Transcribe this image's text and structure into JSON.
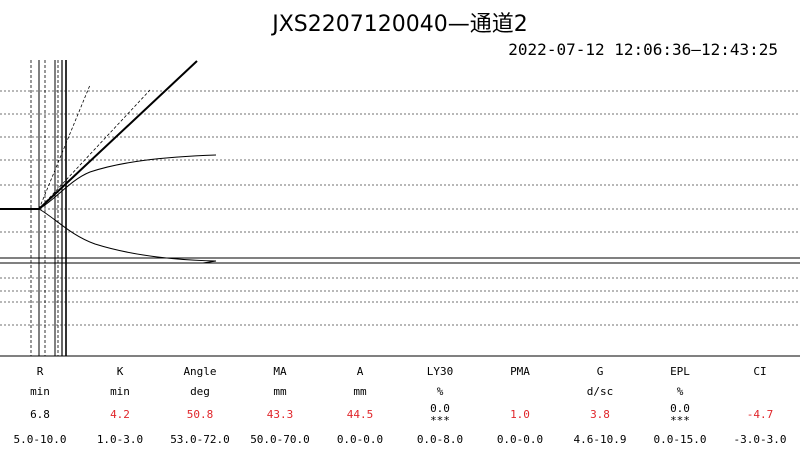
{
  "title": "JXS2207120040—通道2",
  "time_range": "2022-07-12 12:06:36—12:43:25",
  "chart_data": {
    "type": "line",
    "title": "JXS2207120040—通道2",
    "subtitle": "2022-07-12 12:06:36—12:43:25",
    "xlabel": "",
    "ylabel": "",
    "grid": true,
    "series": []
  },
  "params": [
    {
      "name": "R",
      "unit": "min",
      "value": "6.8",
      "flag": "",
      "range": "5.0-10.0",
      "color": "#000000"
    },
    {
      "name": "K",
      "unit": "min",
      "value": "4.2",
      "flag": "",
      "range": "1.0-3.0",
      "color": "#e0262b"
    },
    {
      "name": "Angle",
      "unit": "deg",
      "value": "50.8",
      "flag": "",
      "range": "53.0-72.0",
      "color": "#e0262b"
    },
    {
      "name": "MA",
      "unit": "mm",
      "value": "43.3",
      "flag": "",
      "range": "50.0-70.0",
      "color": "#e0262b"
    },
    {
      "name": "A",
      "unit": "mm",
      "value": "44.5",
      "flag": "",
      "range": "0.0-0.0",
      "color": "#e0262b"
    },
    {
      "name": "LY30",
      "unit": "%",
      "value": "0.0",
      "flag": "***",
      "range": "0.0-8.0",
      "color": "#000000"
    },
    {
      "name": "PMA",
      "unit": "",
      "value": "1.0",
      "flag": "",
      "range": "0.0-0.0",
      "color": "#e0262b"
    },
    {
      "name": "G",
      "unit": "d/sc",
      "value": "3.8",
      "flag": "",
      "range": "4.6-10.9",
      "color": "#e0262b"
    },
    {
      "name": "EPL",
      "unit": "%",
      "value": "0.0",
      "flag": "***",
      "range": "0.0-15.0",
      "color": "#000000"
    },
    {
      "name": "CI",
      "unit": "",
      "value": "-4.7",
      "flag": "",
      "range": "-3.0-3.0",
      "color": "#e0262b"
    }
  ]
}
